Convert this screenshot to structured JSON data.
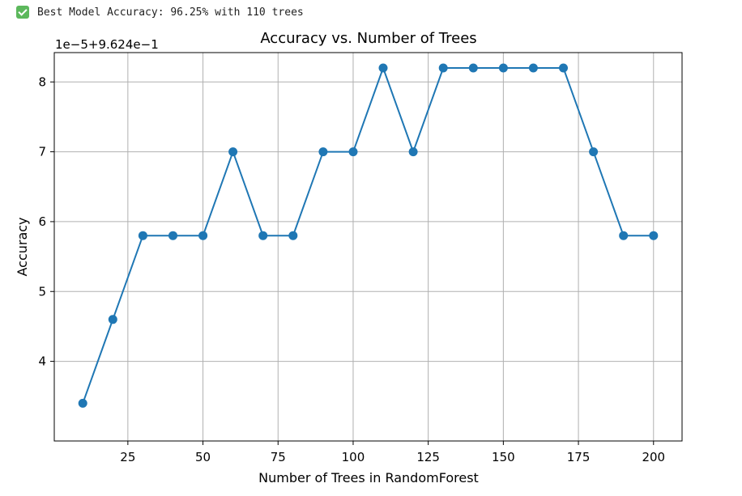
{
  "status": {
    "icon": "check-icon",
    "text": "Best Model Accuracy: 96.25% with 110 trees"
  },
  "chart_data": {
    "type": "line",
    "title": "Accuracy vs. Number of Trees",
    "xlabel": "Number of Trees in RandomForest",
    "ylabel": "Accuracy",
    "offset_text": "1e−5+9.624e−1",
    "x": [
      10,
      20,
      30,
      40,
      50,
      60,
      70,
      80,
      90,
      100,
      110,
      120,
      130,
      140,
      150,
      160,
      170,
      180,
      190,
      200
    ],
    "y": [
      3.4,
      4.6,
      5.8,
      5.8,
      5.8,
      7.0,
      5.8,
      5.8,
      7.0,
      7.0,
      8.2,
      7.0,
      8.2,
      8.2,
      8.2,
      8.2,
      8.2,
      7.0,
      5.8,
      5.8
    ],
    "y_units_note_free": true,
    "xlim": [
      0.5,
      209.5
    ],
    "ylim": [
      2.86,
      8.42
    ],
    "xticks": [
      25,
      50,
      75,
      100,
      125,
      150,
      175,
      200
    ],
    "yticks": [
      4,
      5,
      6,
      7,
      8
    ],
    "xtick_labels": [
      "25",
      "50",
      "75",
      "100",
      "125",
      "150",
      "175",
      "200"
    ],
    "ytick_labels": [
      "4",
      "5",
      "6",
      "7",
      "8"
    ],
    "grid": true,
    "marker": "circle",
    "color": "#1f77b4"
  }
}
